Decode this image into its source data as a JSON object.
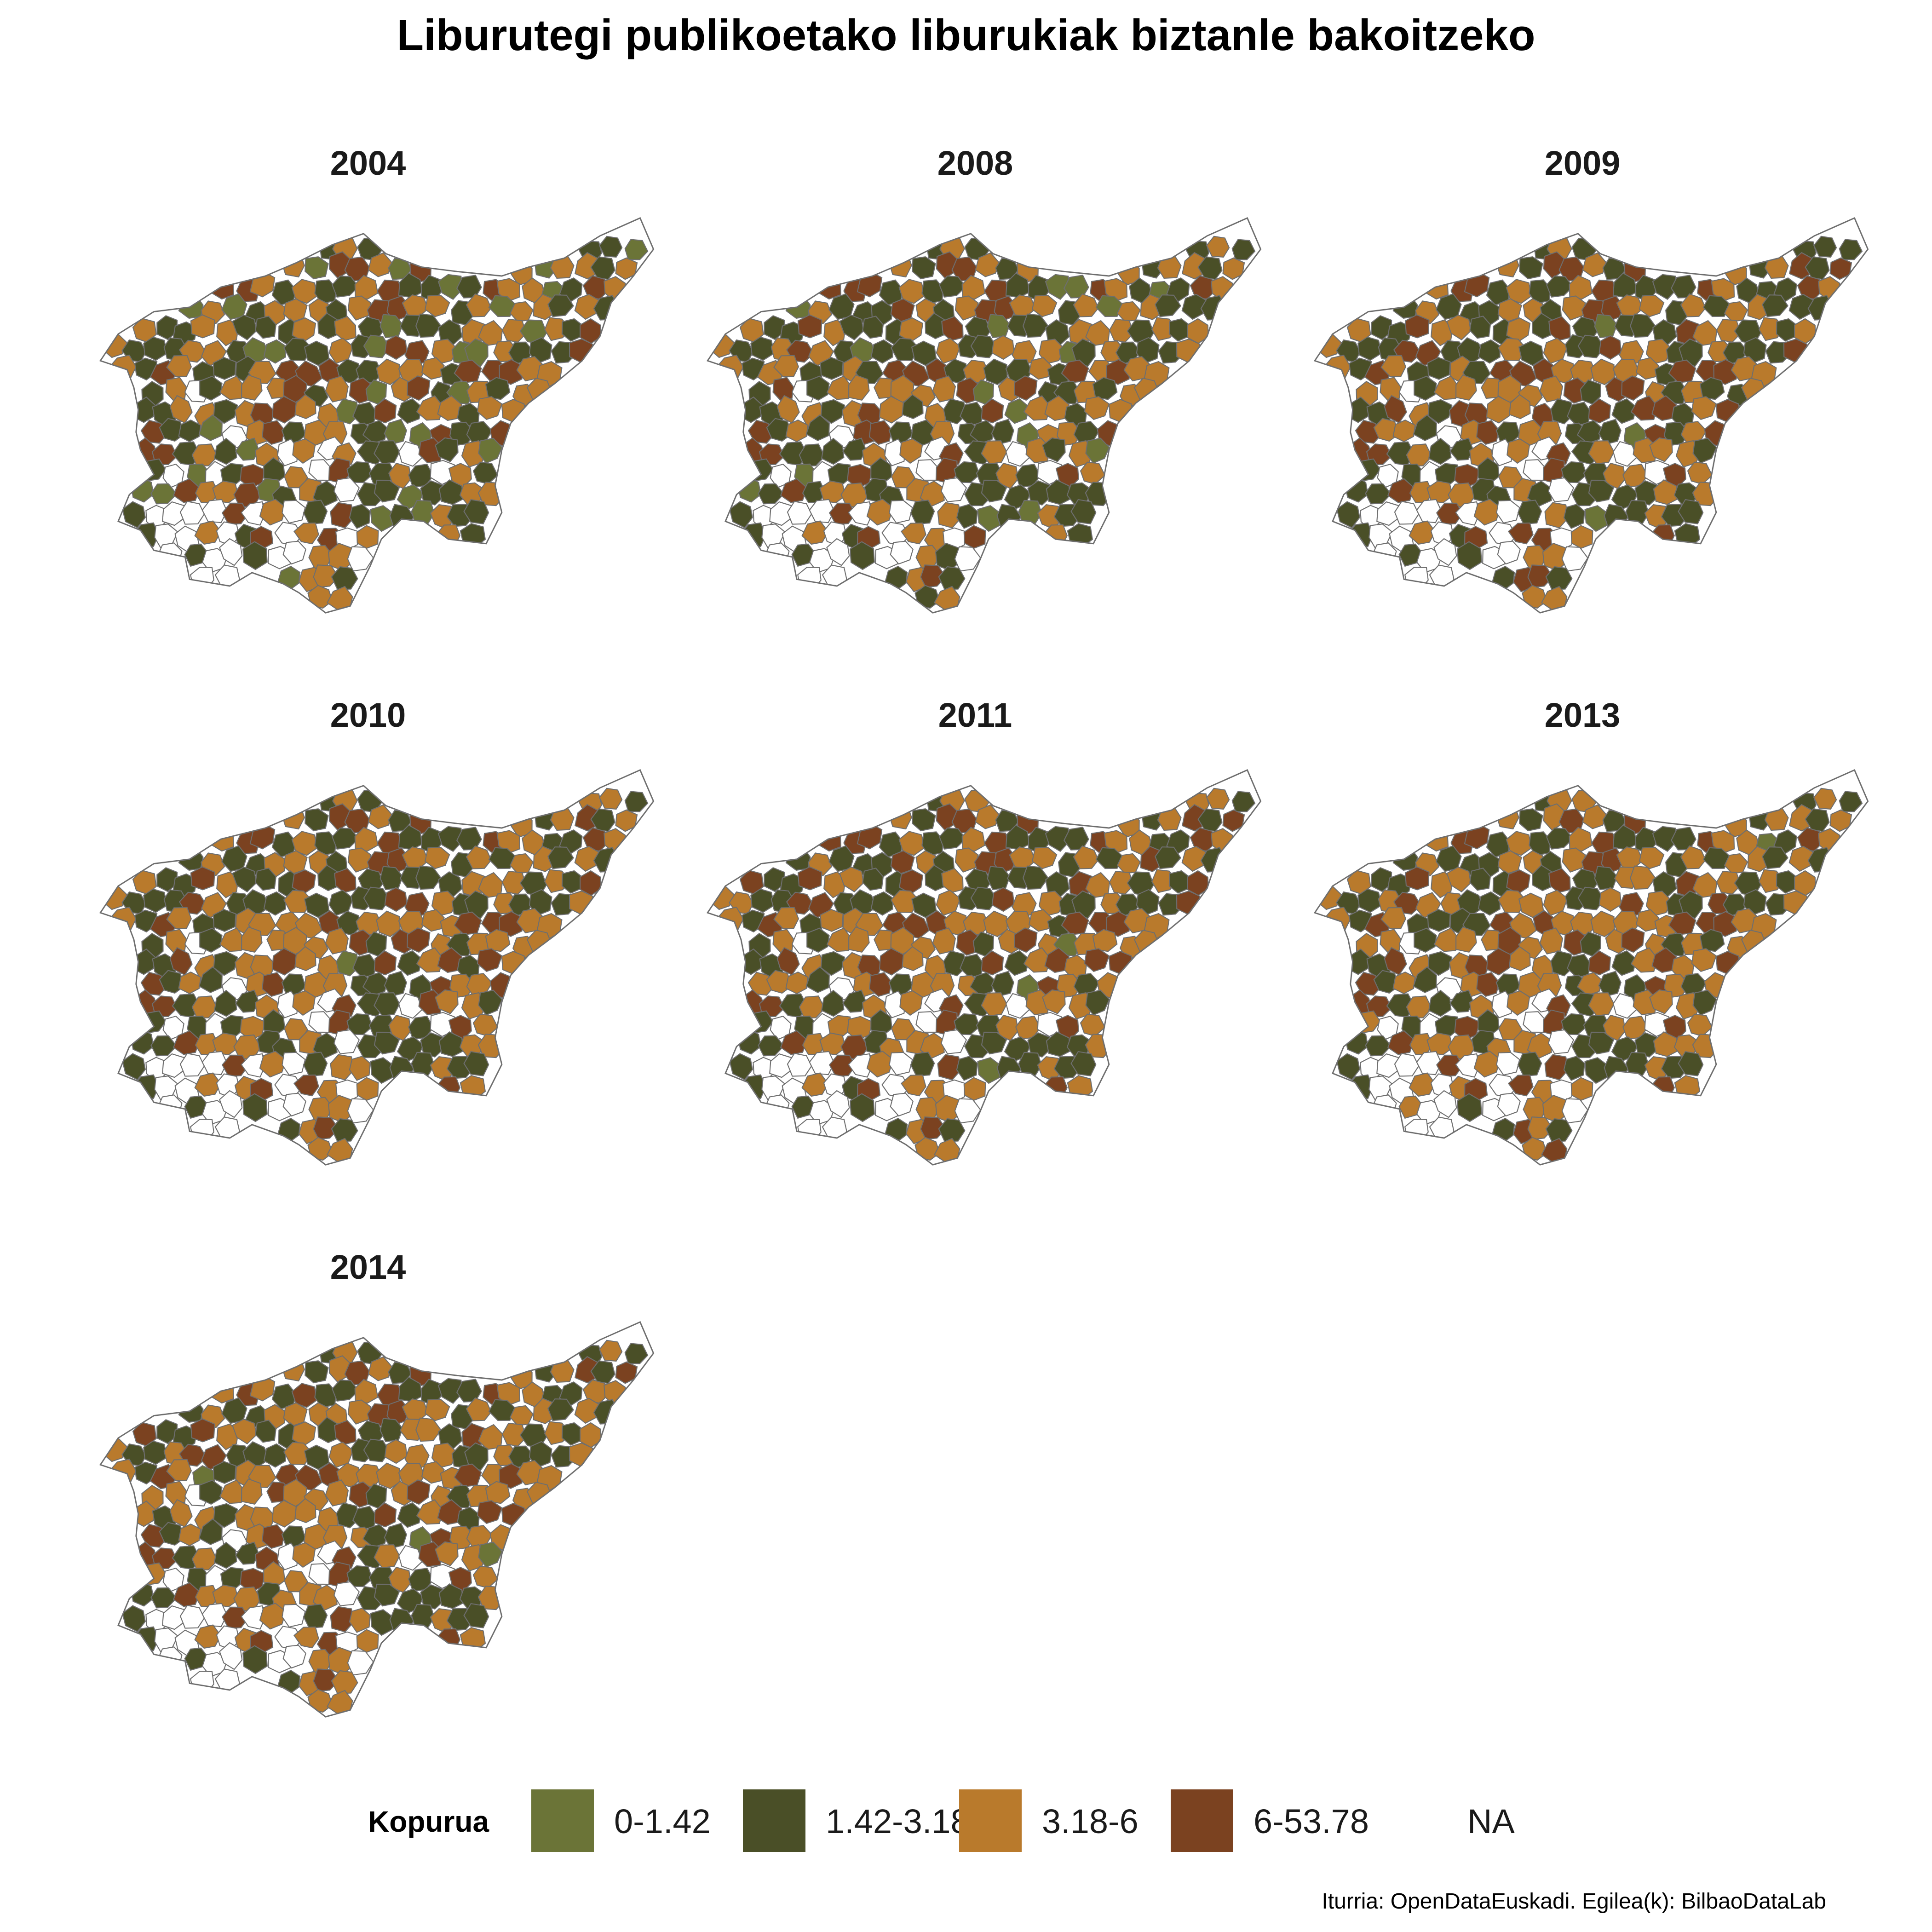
{
  "title": "Liburutegi publikoetako liburukiak biztanle bakoitzeko",
  "caption": "Iturria: OpenDataEuskadi. Egilea(k): BilbaoDataLab",
  "legend": {
    "title": "Kopurua",
    "items": [
      {
        "label": "0-1.42",
        "color": "#6b7437"
      },
      {
        "label": "1.42-3.18",
        "color": "#4a4f27"
      },
      {
        "label": "3.18-6",
        "color": "#b97a2c"
      },
      {
        "label": "6-53.78",
        "color": "#7b4220"
      },
      {
        "label": "NA",
        "color": "#ffffff"
      }
    ]
  },
  "map_style": {
    "border_color": "#6e6e6e",
    "na_color": "#ffffff"
  },
  "panels": [
    {
      "year": "2004",
      "class_mix": [
        0.2,
        0.28,
        0.3,
        0.22
      ]
    },
    {
      "year": "2008",
      "class_mix": [
        0.14,
        0.36,
        0.28,
        0.22
      ]
    },
    {
      "year": "2009",
      "class_mix": [
        0.08,
        0.38,
        0.3,
        0.24
      ]
    },
    {
      "year": "2010",
      "class_mix": [
        0.07,
        0.36,
        0.33,
        0.24
      ]
    },
    {
      "year": "2011",
      "class_mix": [
        0.07,
        0.35,
        0.34,
        0.24
      ]
    },
    {
      "year": "2013",
      "class_mix": [
        0.06,
        0.34,
        0.35,
        0.25
      ]
    },
    {
      "year": "2014",
      "class_mix": [
        0.06,
        0.33,
        0.36,
        0.25
      ]
    }
  ]
}
